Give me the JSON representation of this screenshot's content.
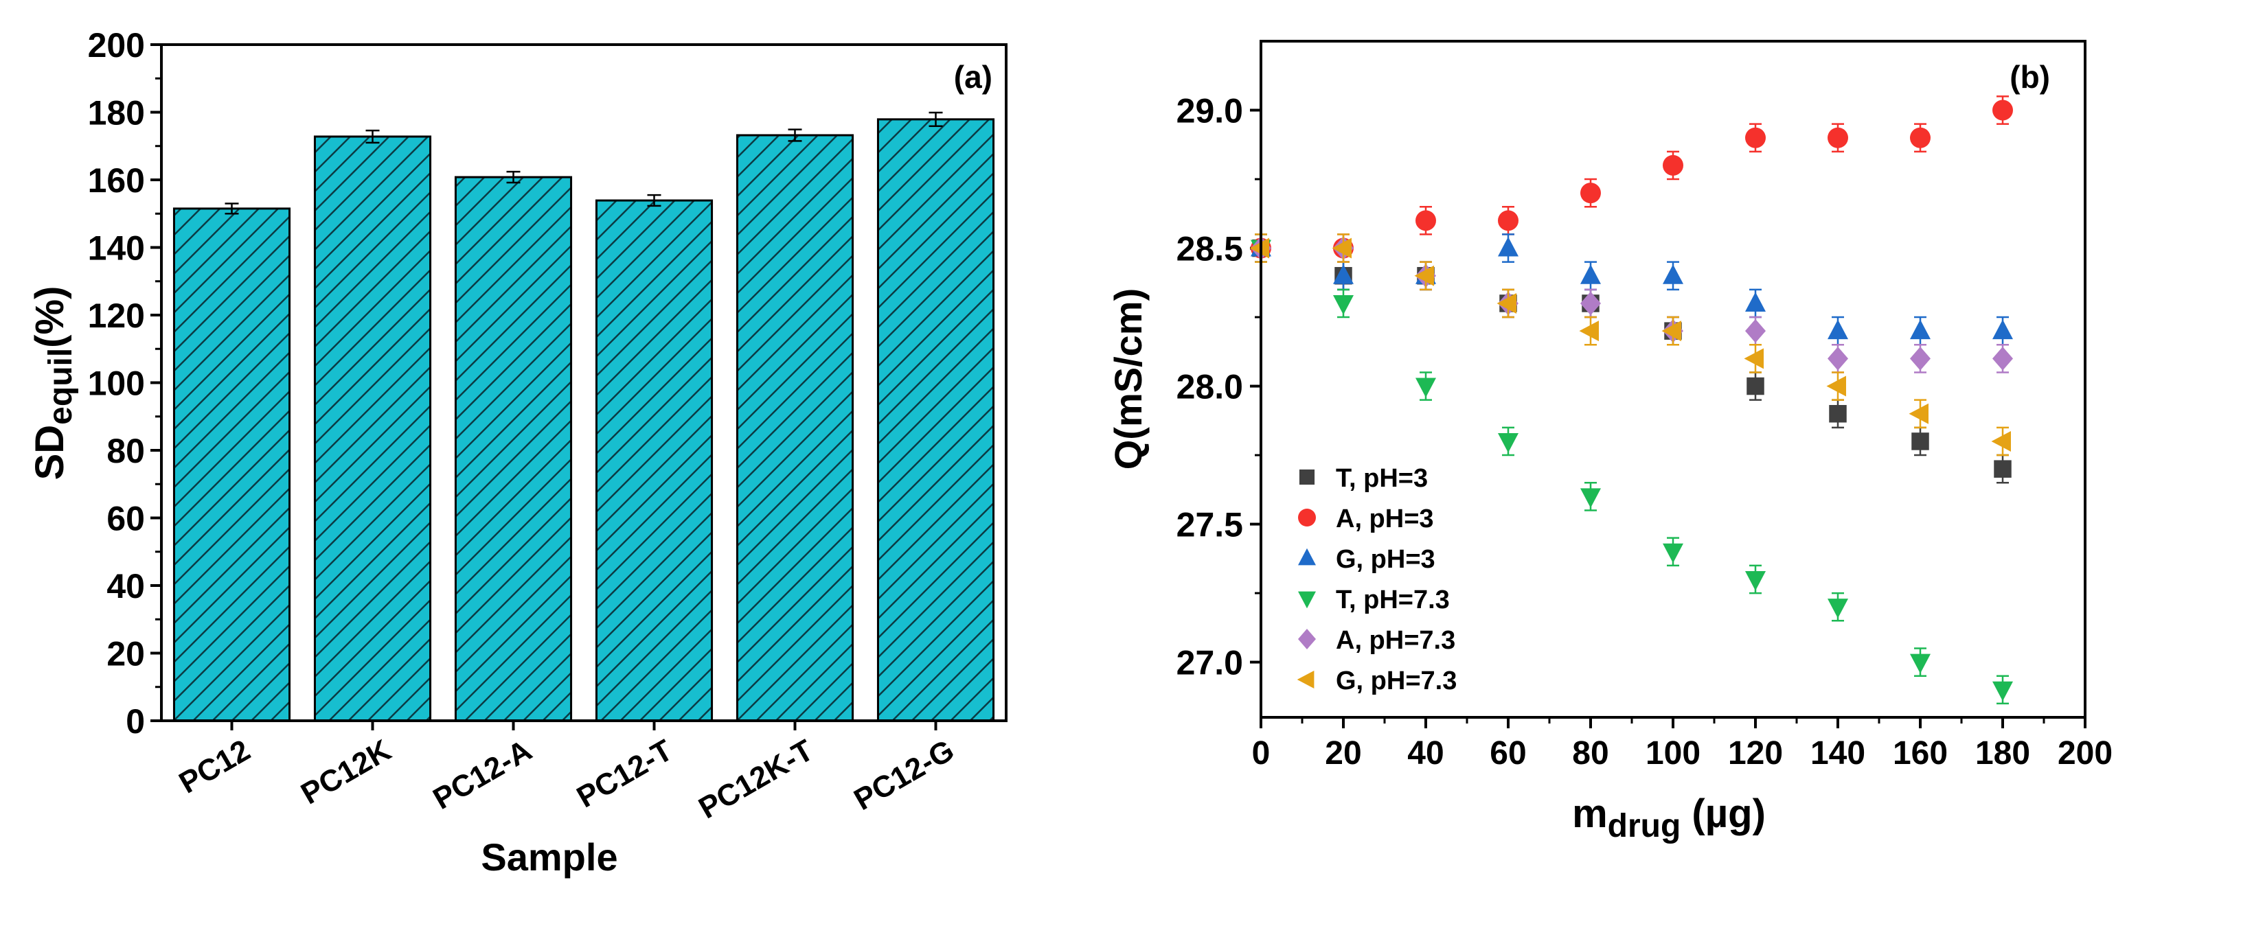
{
  "chart_data": [
    {
      "type": "bar",
      "panel_label": "(a)",
      "categories": [
        "PC12",
        "PC12K",
        "PC12-A",
        "PC12-T",
        "PC12K-T",
        "PC12-G"
      ],
      "values": [
        151.5,
        172.8,
        160.8,
        153.9,
        173.2,
        177.9
      ],
      "errors": [
        1.5,
        1.8,
        1.6,
        1.6,
        1.7,
        2.0
      ],
      "xlabel": "Sample",
      "ylabel_main": "SD",
      "ylabel_sub": "equil",
      "ylabel_tail": "(%)",
      "ylim": [
        0,
        200
      ],
      "yticks": [
        "0",
        "20",
        "40",
        "60",
        "80",
        "100",
        "120",
        "140",
        "160",
        "180",
        "200"
      ],
      "bar_color": "#17BECF",
      "hatch": "diagonal"
    },
    {
      "type": "scatter",
      "panel_label": "(b)",
      "xlabel_main": "m",
      "xlabel_sub": "drug",
      "xlabel_tail": " (µg)",
      "ylabel": "Q(mS/cm)",
      "xlim": [
        0,
        200
      ],
      "ylim": [
        26.8,
        29.25
      ],
      "xticks": [
        "0",
        "20",
        "40",
        "60",
        "80",
        "100",
        "120",
        "140",
        "160",
        "180",
        "200"
      ],
      "yticks": [
        "27.0",
        "27.5",
        "28.0",
        "28.5",
        "29.0"
      ],
      "x": [
        0,
        20,
        40,
        60,
        80,
        100,
        120,
        140,
        160,
        180
      ],
      "series": [
        {
          "name": "T, pH=3",
          "marker": "square",
          "color": "#404040",
          "x": [
            0,
            20,
            40,
            60,
            80,
            100,
            120,
            140,
            160,
            180
          ],
          "values": [
            28.5,
            28.4,
            28.4,
            28.3,
            28.3,
            28.2,
            28.0,
            27.9,
            27.8,
            27.7
          ]
        },
        {
          "name": "A, pH=3",
          "marker": "circle",
          "color": "#F5312C",
          "x": [
            0,
            20,
            40,
            60,
            80,
            100,
            120,
            140,
            160,
            180
          ],
          "values": [
            28.5,
            28.5,
            28.6,
            28.6,
            28.7,
            28.8,
            28.9,
            28.9,
            28.9,
            29.0
          ]
        },
        {
          "name": "G, pH=3",
          "marker": "triangle-up",
          "color": "#1F6BC9",
          "x": [
            0,
            20,
            40,
            60,
            80,
            100,
            120,
            140,
            160,
            180
          ],
          "values": [
            28.5,
            28.4,
            28.4,
            28.5,
            28.4,
            28.4,
            28.3,
            28.2,
            28.2,
            28.2
          ]
        },
        {
          "name": "T, pH=7.3",
          "marker": "triangle-down",
          "color": "#1DB954",
          "x": [
            0,
            20,
            40,
            60,
            80,
            100,
            120,
            140,
            160,
            180
          ],
          "values": [
            28.5,
            28.3,
            28.0,
            27.8,
            27.6,
            27.4,
            27.3,
            27.2,
            27.0,
            26.9
          ]
        },
        {
          "name": "A, pH=7.3",
          "marker": "diamond",
          "color": "#B07CC6",
          "x": [
            0,
            20,
            40,
            60,
            80,
            100,
            120,
            140,
            160,
            180
          ],
          "values": [
            28.5,
            28.5,
            28.4,
            28.3,
            28.3,
            28.2,
            28.2,
            28.1,
            28.1,
            28.1
          ]
        },
        {
          "name": "G, pH=7.3",
          "marker": "triangle-left",
          "color": "#E5A215",
          "x": [
            0,
            20,
            40,
            60,
            80,
            100,
            120,
            140,
            160,
            180
          ],
          "values": [
            28.5,
            28.5,
            28.4,
            28.3,
            28.2,
            28.2,
            28.1,
            28.0,
            27.9,
            27.8
          ]
        }
      ],
      "error": 0.05,
      "legend_position": "bottom-left"
    }
  ]
}
